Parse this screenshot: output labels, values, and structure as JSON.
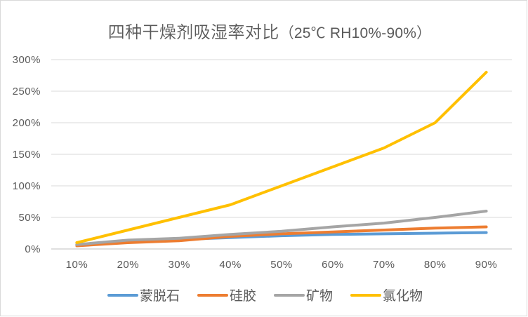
{
  "chart_data": {
    "type": "line",
    "title": "四种干燥剂吸湿率对比（25℃ RH10%-90%）",
    "title_main": "四种干燥剂吸湿率对比",
    "title_sub": "（25℃ RH10%-90%）",
    "xlabel": "",
    "ylabel": "",
    "categories": [
      "10%",
      "20%",
      "30%",
      "40%",
      "50%",
      "60%",
      "70%",
      "80%",
      "90%"
    ],
    "y_ticks": [
      "0%",
      "50%",
      "100%",
      "150%",
      "200%",
      "250%",
      "300%"
    ],
    "ylim": [
      0,
      300
    ],
    "grid": true,
    "legend_position": "bottom",
    "series": [
      {
        "name": "蒙脱石",
        "color": "#5B9BD5",
        "values": [
          7,
          13,
          15,
          18,
          21,
          23,
          24,
          25,
          26
        ]
      },
      {
        "name": "硅胶",
        "color": "#ED7D31",
        "values": [
          5,
          10,
          13,
          20,
          24,
          27,
          30,
          33,
          35
        ]
      },
      {
        "name": "矿物",
        "color": "#A5A5A5",
        "values": [
          7,
          14,
          17,
          23,
          28,
          35,
          41,
          50,
          60
        ]
      },
      {
        "name": "氯化物",
        "color": "#FFC000",
        "values": [
          10,
          30,
          50,
          70,
          100,
          130,
          160,
          200,
          280
        ]
      }
    ]
  },
  "colors": {
    "title": "#595959",
    "axis_label": "#595959",
    "gridline": "#D9D9D9",
    "axis_line": "#BFBFBF",
    "border": "#D9D9D9",
    "background": "#FFFFFF"
  }
}
